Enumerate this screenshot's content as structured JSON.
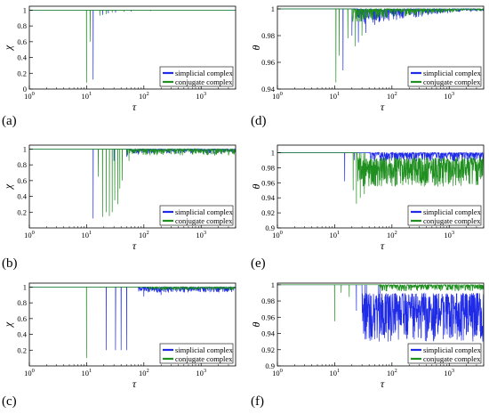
{
  "figure": {
    "colors": {
      "simplicial": "#1f2be6",
      "conjugate": "#1f8f1f"
    },
    "legend_entries": [
      "simplicial complex",
      "conjugate complex"
    ],
    "legend_position": "lower-right"
  },
  "chart_data": [
    {
      "type": "line",
      "panel_label": "(a)",
      "xlabel": "τ",
      "ylabel": "χ",
      "xscale": "log",
      "xlim": [
        1,
        4000
      ],
      "ylim": [
        0,
        1.05
      ],
      "xticks": [
        "10^0",
        "10^1",
        "10^2",
        "10^3"
      ],
      "yticks": [
        0,
        0.2,
        0.4,
        0.6,
        0.8,
        1
      ],
      "grid": false,
      "series": [
        {
          "name": "simplicial complex",
          "baseline": 1,
          "dips": [
            [
              13,
              0.12
            ],
            [
              19,
              0.94
            ],
            [
              24,
              0.96
            ],
            [
              32,
              0.97
            ],
            [
              60,
              0.985
            ],
            [
              130,
              0.99
            ]
          ]
        },
        {
          "name": "conjugate complex",
          "baseline": 1,
          "dips": [
            [
              10,
              0.08
            ],
            [
              11.5,
              0.6
            ],
            [
              17,
              0.93
            ],
            [
              22,
              0.95
            ],
            [
              28,
              0.97
            ],
            [
              45,
              0.98
            ]
          ]
        }
      ]
    },
    {
      "type": "line",
      "panel_label": "(b)",
      "xlabel": "τ",
      "ylabel": "χ",
      "xscale": "log",
      "xlim": [
        1,
        4000
      ],
      "ylim": [
        0,
        1.05
      ],
      "xticks": [
        "10^0",
        "10^1",
        "10^2",
        "10^3"
      ],
      "yticks": [
        0.2,
        0.4,
        0.6,
        0.8,
        1
      ],
      "grid": false,
      "series": [
        {
          "name": "simplicial complex",
          "baseline": 1,
          "dips": [
            [
              13,
              0.12
            ],
            [
              30,
              0.85
            ],
            [
              50,
              0.9
            ],
            [
              80,
              0.93
            ]
          ],
          "noise_from": 60,
          "noise_depth": 0.06
        },
        {
          "name": "conjugate complex",
          "baseline": 1,
          "dips": [
            [
              16,
              0.65
            ],
            [
              19,
              0.14
            ],
            [
              22,
              0.2
            ],
            [
              25,
              0.15
            ],
            [
              28,
              0.2
            ],
            [
              31,
              0.35
            ],
            [
              35,
              0.3
            ],
            [
              38,
              0.5
            ],
            [
              42,
              0.6
            ],
            [
              55,
              0.85
            ]
          ],
          "noise_from": 50,
          "noise_depth": 0.08
        }
      ]
    },
    {
      "type": "line",
      "panel_label": "(c)",
      "xlabel": "τ",
      "ylabel": "χ",
      "xscale": "log",
      "xlim": [
        1,
        4000
      ],
      "ylim": [
        0,
        1.05
      ],
      "xticks": [
        "10^0",
        "10^1",
        "10^2",
        "10^3"
      ],
      "yticks": [
        0.2,
        0.4,
        0.6,
        0.8,
        1
      ],
      "grid": false,
      "series": [
        {
          "name": "simplicial complex",
          "baseline": 1,
          "dips": [
            [
              22,
              0.2
            ],
            [
              32,
              0.2
            ],
            [
              40,
              0.2
            ],
            [
              50,
              0.2
            ],
            [
              100,
              0.88
            ],
            [
              200,
              0.9
            ]
          ],
          "noise_from": 80,
          "noise_depth": 0.07
        },
        {
          "name": "conjugate complex",
          "baseline": 1,
          "dips": [
            [
              10,
              0.1
            ]
          ],
          "noise_from": 120,
          "noise_depth": 0.04
        }
      ]
    },
    {
      "type": "line",
      "panel_label": "(d)",
      "xlabel": "τ",
      "ylabel": "θ",
      "xscale": "log",
      "xlim": [
        1,
        4000
      ],
      "ylim": [
        0.94,
        1.002
      ],
      "xticks": [
        "10^0",
        "10^1",
        "10^2",
        "10^3"
      ],
      "yticks": [
        0.94,
        0.96,
        0.98,
        1
      ],
      "grid": false,
      "series": [
        {
          "name": "simplicial complex",
          "baseline": 1,
          "dips": [
            [
              14,
              0.954
            ],
            [
              20,
              0.98
            ],
            [
              26,
              0.975
            ],
            [
              35,
              0.982
            ],
            [
              50,
              0.988
            ]
          ],
          "noise_from": 25,
          "noise_depth": 0.012,
          "noise_decay": true
        },
        {
          "name": "conjugate complex",
          "baseline": 1,
          "dips": [
            [
              10.5,
              0.945
            ],
            [
              12,
              0.965
            ],
            [
              17,
              0.978
            ],
            [
              23,
              0.972
            ],
            [
              30,
              0.98
            ]
          ],
          "noise_from": 20,
          "noise_depth": 0.01,
          "noise_decay": true
        }
      ]
    },
    {
      "type": "line",
      "panel_label": "(e)",
      "xlabel": "τ",
      "ylabel": "θ",
      "xscale": "log",
      "xlim": [
        1,
        4000
      ],
      "ylim": [
        0.9,
        1.01
      ],
      "xticks": [
        "10^0",
        "10^1",
        "10^2",
        "10^3"
      ],
      "yticks": [
        0.9,
        0.92,
        0.94,
        0.96,
        0.98,
        1
      ],
      "grid": false,
      "series": [
        {
          "name": "simplicial complex",
          "baseline": 1,
          "dips": [
            [
              15,
              0.962
            ],
            [
              22,
              0.99
            ]
          ],
          "noise_from": 40,
          "noise_depth": 0.012
        },
        {
          "name": "conjugate complex",
          "baseline": 1,
          "dips": [
            [
              21,
              0.95
            ],
            [
              24,
              0.932
            ],
            [
              28,
              0.94
            ],
            [
              33,
              0.945
            ]
          ],
          "noise_from": 25,
          "noise_depth": 0.045,
          "noise_band": true
        }
      ]
    },
    {
      "type": "line",
      "panel_label": "(f)",
      "xlabel": "τ",
      "ylabel": "θ",
      "xscale": "log",
      "xlim": [
        1,
        4000
      ],
      "ylim": [
        0.9,
        1.002
      ],
      "xticks": [
        "10^0",
        "10^1",
        "10^2",
        "10^3"
      ],
      "yticks": [
        0.9,
        0.92,
        0.94,
        0.96,
        0.98,
        1
      ],
      "grid": false,
      "series": [
        {
          "name": "simplicial complex",
          "baseline": 1,
          "dips": [
            [
              24,
              0.968
            ],
            [
              35,
              0.985
            ],
            [
              60,
              0.93
            ]
          ],
          "noise_from": 30,
          "noise_depth": 0.07,
          "noise_band": true
        },
        {
          "name": "conjugate complex",
          "baseline": 1,
          "dips": [
            [
              10,
              0.955
            ],
            [
              13,
              0.99
            ],
            [
              18,
              0.985
            ]
          ],
          "noise_from": 60,
          "noise_depth": 0.008
        }
      ]
    }
  ]
}
